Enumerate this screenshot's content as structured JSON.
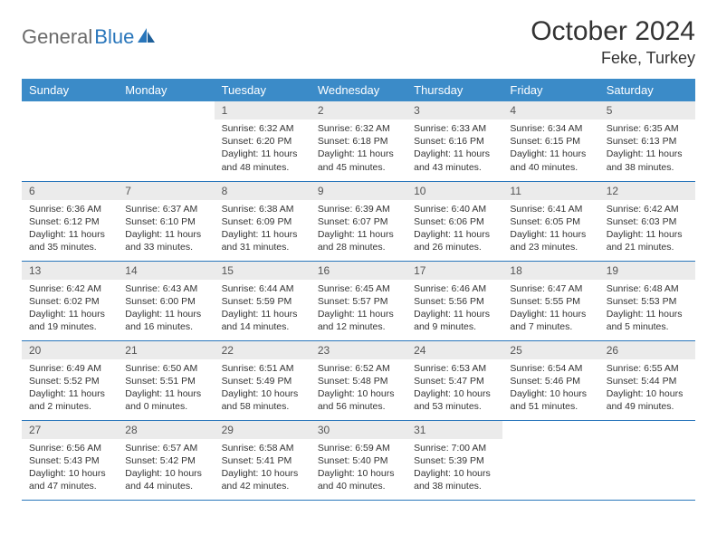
{
  "logo": {
    "part1": "General",
    "part2": "Blue"
  },
  "title": "October 2024",
  "location": "Feke, Turkey",
  "colors": {
    "header_bg": "#3b8bc8",
    "header_text": "#ffffff",
    "daynum_bg": "#ebebeb",
    "daynum_text": "#555555",
    "body_text": "#333333",
    "rule": "#2976bb",
    "logo_gray": "#6b6b6b",
    "logo_blue": "#2976bb"
  },
  "dayNames": [
    "Sunday",
    "Monday",
    "Tuesday",
    "Wednesday",
    "Thursday",
    "Friday",
    "Saturday"
  ],
  "weeks": [
    [
      {
        "n": "",
        "sr": "",
        "ss": "",
        "dl": ""
      },
      {
        "n": "",
        "sr": "",
        "ss": "",
        "dl": ""
      },
      {
        "n": "1",
        "sr": "Sunrise: 6:32 AM",
        "ss": "Sunset: 6:20 PM",
        "dl": "Daylight: 11 hours and 48 minutes."
      },
      {
        "n": "2",
        "sr": "Sunrise: 6:32 AM",
        "ss": "Sunset: 6:18 PM",
        "dl": "Daylight: 11 hours and 45 minutes."
      },
      {
        "n": "3",
        "sr": "Sunrise: 6:33 AM",
        "ss": "Sunset: 6:16 PM",
        "dl": "Daylight: 11 hours and 43 minutes."
      },
      {
        "n": "4",
        "sr": "Sunrise: 6:34 AM",
        "ss": "Sunset: 6:15 PM",
        "dl": "Daylight: 11 hours and 40 minutes."
      },
      {
        "n": "5",
        "sr": "Sunrise: 6:35 AM",
        "ss": "Sunset: 6:13 PM",
        "dl": "Daylight: 11 hours and 38 minutes."
      }
    ],
    [
      {
        "n": "6",
        "sr": "Sunrise: 6:36 AM",
        "ss": "Sunset: 6:12 PM",
        "dl": "Daylight: 11 hours and 35 minutes."
      },
      {
        "n": "7",
        "sr": "Sunrise: 6:37 AM",
        "ss": "Sunset: 6:10 PM",
        "dl": "Daylight: 11 hours and 33 minutes."
      },
      {
        "n": "8",
        "sr": "Sunrise: 6:38 AM",
        "ss": "Sunset: 6:09 PM",
        "dl": "Daylight: 11 hours and 31 minutes."
      },
      {
        "n": "9",
        "sr": "Sunrise: 6:39 AM",
        "ss": "Sunset: 6:07 PM",
        "dl": "Daylight: 11 hours and 28 minutes."
      },
      {
        "n": "10",
        "sr": "Sunrise: 6:40 AM",
        "ss": "Sunset: 6:06 PM",
        "dl": "Daylight: 11 hours and 26 minutes."
      },
      {
        "n": "11",
        "sr": "Sunrise: 6:41 AM",
        "ss": "Sunset: 6:05 PM",
        "dl": "Daylight: 11 hours and 23 minutes."
      },
      {
        "n": "12",
        "sr": "Sunrise: 6:42 AM",
        "ss": "Sunset: 6:03 PM",
        "dl": "Daylight: 11 hours and 21 minutes."
      }
    ],
    [
      {
        "n": "13",
        "sr": "Sunrise: 6:42 AM",
        "ss": "Sunset: 6:02 PM",
        "dl": "Daylight: 11 hours and 19 minutes."
      },
      {
        "n": "14",
        "sr": "Sunrise: 6:43 AM",
        "ss": "Sunset: 6:00 PM",
        "dl": "Daylight: 11 hours and 16 minutes."
      },
      {
        "n": "15",
        "sr": "Sunrise: 6:44 AM",
        "ss": "Sunset: 5:59 PM",
        "dl": "Daylight: 11 hours and 14 minutes."
      },
      {
        "n": "16",
        "sr": "Sunrise: 6:45 AM",
        "ss": "Sunset: 5:57 PM",
        "dl": "Daylight: 11 hours and 12 minutes."
      },
      {
        "n": "17",
        "sr": "Sunrise: 6:46 AM",
        "ss": "Sunset: 5:56 PM",
        "dl": "Daylight: 11 hours and 9 minutes."
      },
      {
        "n": "18",
        "sr": "Sunrise: 6:47 AM",
        "ss": "Sunset: 5:55 PM",
        "dl": "Daylight: 11 hours and 7 minutes."
      },
      {
        "n": "19",
        "sr": "Sunrise: 6:48 AM",
        "ss": "Sunset: 5:53 PM",
        "dl": "Daylight: 11 hours and 5 minutes."
      }
    ],
    [
      {
        "n": "20",
        "sr": "Sunrise: 6:49 AM",
        "ss": "Sunset: 5:52 PM",
        "dl": "Daylight: 11 hours and 2 minutes."
      },
      {
        "n": "21",
        "sr": "Sunrise: 6:50 AM",
        "ss": "Sunset: 5:51 PM",
        "dl": "Daylight: 11 hours and 0 minutes."
      },
      {
        "n": "22",
        "sr": "Sunrise: 6:51 AM",
        "ss": "Sunset: 5:49 PM",
        "dl": "Daylight: 10 hours and 58 minutes."
      },
      {
        "n": "23",
        "sr": "Sunrise: 6:52 AM",
        "ss": "Sunset: 5:48 PM",
        "dl": "Daylight: 10 hours and 56 minutes."
      },
      {
        "n": "24",
        "sr": "Sunrise: 6:53 AM",
        "ss": "Sunset: 5:47 PM",
        "dl": "Daylight: 10 hours and 53 minutes."
      },
      {
        "n": "25",
        "sr": "Sunrise: 6:54 AM",
        "ss": "Sunset: 5:46 PM",
        "dl": "Daylight: 10 hours and 51 minutes."
      },
      {
        "n": "26",
        "sr": "Sunrise: 6:55 AM",
        "ss": "Sunset: 5:44 PM",
        "dl": "Daylight: 10 hours and 49 minutes."
      }
    ],
    [
      {
        "n": "27",
        "sr": "Sunrise: 6:56 AM",
        "ss": "Sunset: 5:43 PM",
        "dl": "Daylight: 10 hours and 47 minutes."
      },
      {
        "n": "28",
        "sr": "Sunrise: 6:57 AM",
        "ss": "Sunset: 5:42 PM",
        "dl": "Daylight: 10 hours and 44 minutes."
      },
      {
        "n": "29",
        "sr": "Sunrise: 6:58 AM",
        "ss": "Sunset: 5:41 PM",
        "dl": "Daylight: 10 hours and 42 minutes."
      },
      {
        "n": "30",
        "sr": "Sunrise: 6:59 AM",
        "ss": "Sunset: 5:40 PM",
        "dl": "Daylight: 10 hours and 40 minutes."
      },
      {
        "n": "31",
        "sr": "Sunrise: 7:00 AM",
        "ss": "Sunset: 5:39 PM",
        "dl": "Daylight: 10 hours and 38 minutes."
      },
      {
        "n": "",
        "sr": "",
        "ss": "",
        "dl": ""
      },
      {
        "n": "",
        "sr": "",
        "ss": "",
        "dl": ""
      }
    ]
  ]
}
